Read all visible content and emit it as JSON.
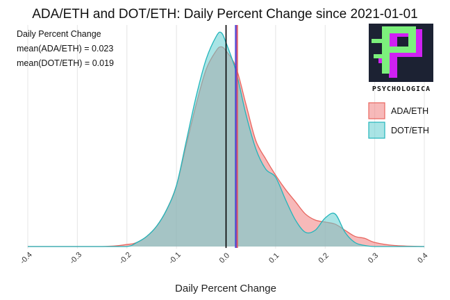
{
  "chart_data": {
    "type": "area",
    "subtype": "density",
    "title": "ADA/ETH and DOT/ETH: Daily Percent Change since 2021-01-01",
    "xlabel": "Daily Percent Change",
    "ylabel": "",
    "xlim": [
      -0.4,
      0.4
    ],
    "x_ticks": [
      "-0.4",
      "-0.3",
      "-0.2",
      "-0.1",
      "0.0",
      "0.1",
      "0.2",
      "0.3",
      "0.4"
    ],
    "x_tick_values": [
      -0.4,
      -0.3,
      -0.2,
      -0.1,
      0.0,
      0.1,
      0.2,
      0.3,
      0.4
    ],
    "ylim": [
      0,
      1
    ],
    "grid": "vertical",
    "legend_position": "right",
    "annotation": {
      "heading": "Daily Percent Change",
      "lines": [
        "mean(ADA/ETH) = 0.023",
        "mean(DOT/ETH) = 0.019"
      ]
    },
    "vlines": [
      {
        "name": "zero",
        "x": 0.0,
        "color": "#000000"
      },
      {
        "name": "mean(ADA/ETH)",
        "x": 0.023,
        "color": "#e8514a"
      },
      {
        "name": "mean(DOT/ETH)",
        "x": 0.019,
        "color": "#2f3dd6"
      },
      {
        "name": "mean-overlap",
        "x": 0.021,
        "color": "#8c3fb0"
      }
    ],
    "x": [
      -0.4,
      -0.25,
      -0.2,
      -0.18,
      -0.16,
      -0.14,
      -0.12,
      -0.1,
      -0.08,
      -0.06,
      -0.04,
      -0.02,
      -0.01,
      0.0,
      0.02,
      0.04,
      0.06,
      0.08,
      0.1,
      0.12,
      0.14,
      0.16,
      0.18,
      0.2,
      0.22,
      0.24,
      0.26,
      0.28,
      0.3,
      0.34,
      0.4
    ],
    "series": [
      {
        "name": "ADA/ETH",
        "fill": "#f08080",
        "stroke": "#e8665f",
        "values": [
          0.0,
          0.0,
          0.01,
          0.02,
          0.05,
          0.1,
          0.18,
          0.3,
          0.5,
          0.7,
          0.87,
          0.96,
          0.98,
          0.96,
          0.88,
          0.7,
          0.52,
          0.43,
          0.35,
          0.28,
          0.22,
          0.16,
          0.13,
          0.12,
          0.11,
          0.08,
          0.05,
          0.04,
          0.02,
          0.005,
          0.0
        ]
      },
      {
        "name": "DOT/ETH",
        "fill": "#62cdd0",
        "stroke": "#22b5bb",
        "values": [
          0.0,
          0.0,
          0.0,
          0.02,
          0.05,
          0.1,
          0.18,
          0.3,
          0.52,
          0.74,
          0.92,
          1.03,
          1.05,
          1.0,
          0.86,
          0.65,
          0.48,
          0.38,
          0.34,
          0.23,
          0.13,
          0.07,
          0.08,
          0.14,
          0.16,
          0.07,
          0.02,
          0.005,
          0.0,
          0.0,
          0.0
        ]
      }
    ]
  },
  "logo": {
    "letters": "PSYCHOLOGICA",
    "colors": [
      "#7cf07c",
      "#d021f2",
      "#1c2233"
    ]
  }
}
